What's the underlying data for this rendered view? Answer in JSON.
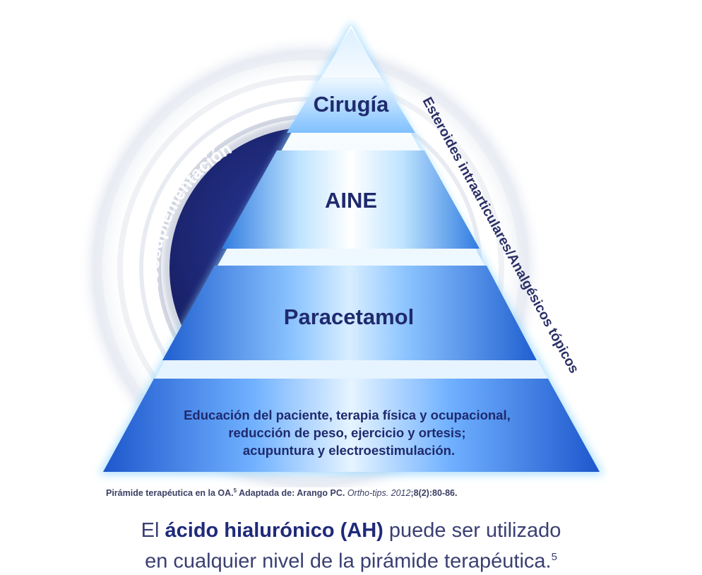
{
  "pyramid": {
    "level1": "Cirugía",
    "level2": "AINE",
    "level3": "Paracetamol",
    "level4_lines": [
      "Educación del paciente, terapia física y ocupacional,",
      "reducción de peso, ejercicio y ortesis;",
      "acupuntura y electroestimulación."
    ]
  },
  "left_band_label": "Viscosuplementación",
  "right_side_label": "Esteroides intraarticulares/Analgésicos tópicos",
  "caption": {
    "prefix": "Pirámide terapéutica en la OA.",
    "sup": "5",
    "middle": " Adaptada de: Arango PC. ",
    "journal": "Ortho-tips. 2012",
    "suffix": ";8(2):80-86."
  },
  "statement": {
    "pre": "El ",
    "bold": "ácido hialurónico (AH)",
    "post_line1": " puede ser utilizado",
    "line2": "en cualquier nivel de la pirámide terapéutica.",
    "sup": "5"
  },
  "colors": {
    "dark_navy": "#1b2570",
    "text_navy": "#1f2a6e",
    "blue": "#2d6fd8",
    "light_blue": "#cfe6ff",
    "glow": "#8fd4ff"
  }
}
